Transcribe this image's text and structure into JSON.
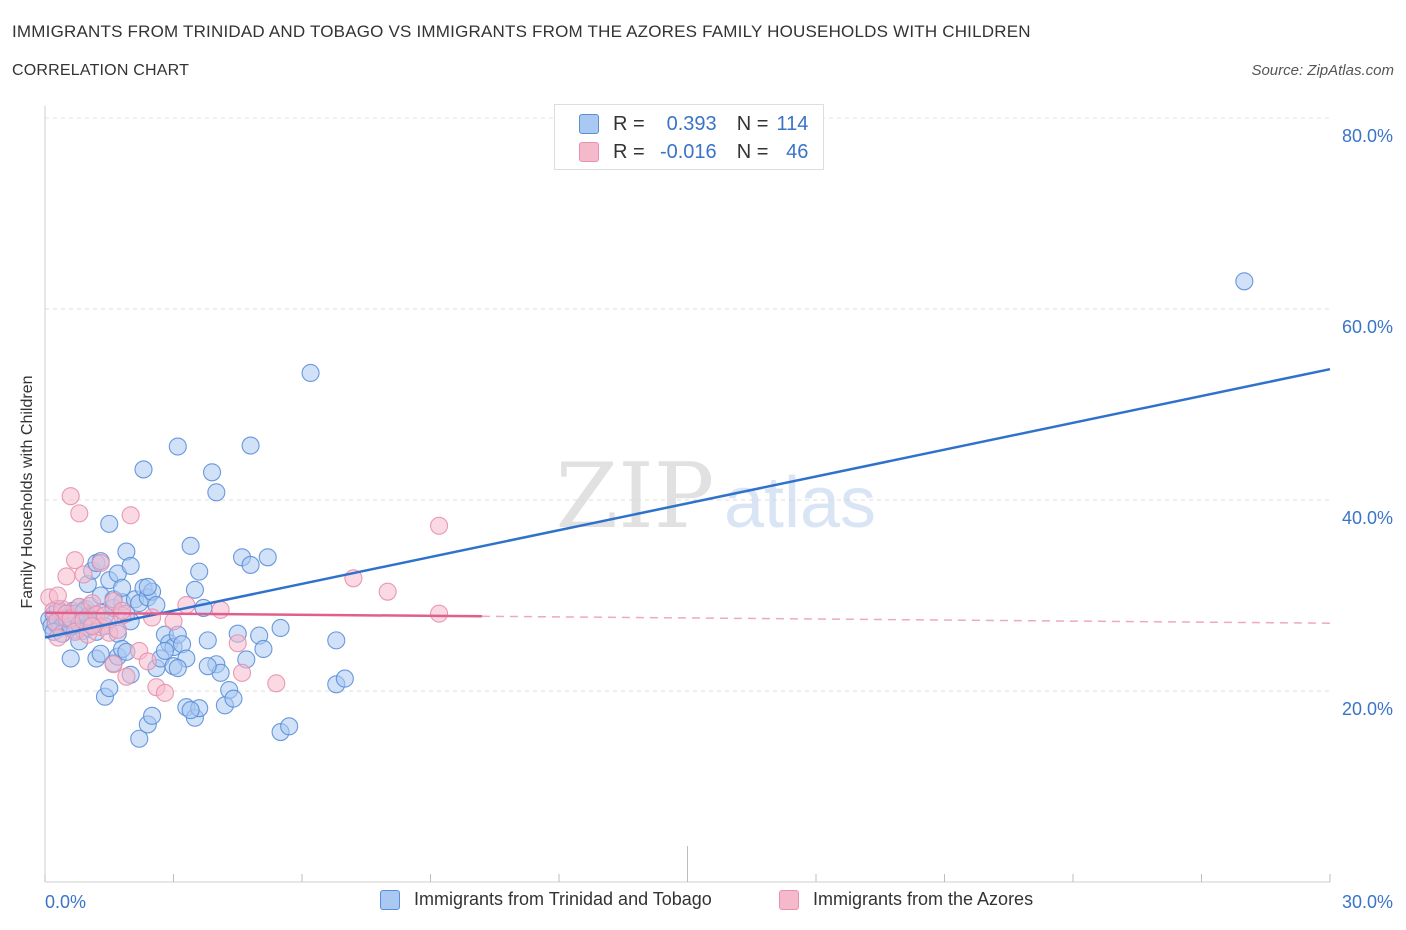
{
  "header": {
    "title": "IMMIGRANTS FROM TRINIDAD AND TOBAGO VS IMMIGRANTS FROM THE AZORES FAMILY HOUSEHOLDS WITH CHILDREN",
    "subtitle": "CORRELATION CHART",
    "source": "Source: ZipAtlas.com"
  },
  "watermark": {
    "zip": "ZIP",
    "atlas": "atlas"
  },
  "legend": {
    "rows": [
      {
        "r_label": "R = ",
        "r_value": "0.393",
        "n_label": "N = ",
        "n_value": "114",
        "color": "#a9c9f2"
      },
      {
        "r_label": "R = ",
        "r_value": "-0.016",
        "n_label": "N = ",
        "n_value": "46",
        "color": "#f5b9cc"
      }
    ]
  },
  "colors": {
    "blue": "#5a8fd8",
    "blue_fill": "#a9c9f2",
    "blue_line": "#2f72cc",
    "pink": "#e68fae",
    "pink_fill": "#f5b9cc",
    "pink_line": "#e0608d",
    "tick_text": "#3a74c8"
  },
  "chart_data": {
    "type": "scatter",
    "title": "IMMIGRANTS FROM TRINIDAD AND TOBAGO VS IMMIGRANTS FROM THE AZORES FAMILY HOUSEHOLDS WITH CHILDREN",
    "xlabel": "",
    "ylabel": "Family Households with Children",
    "xlim": [
      0,
      30
    ],
    "ylim": [
      0,
      80
    ],
    "x_tick_labels": [
      "0.0%",
      "30.0%"
    ],
    "y_ticks": [
      20,
      40,
      60,
      80
    ],
    "y_tick_labels": [
      "20.0%",
      "40.0%",
      "60.0%",
      "80.0%"
    ],
    "grid": true,
    "legend_position": "top-center",
    "series": [
      {
        "name": "Immigrants from Trinidad and Tobago",
        "color": "#5a8fd8",
        "R": 0.393,
        "N": 114,
        "trend": {
          "x": [
            0,
            30
          ],
          "y": [
            25.6,
            53.7
          ],
          "dashed_from": null
        },
        "points": [
          [
            0.1,
            27.5
          ],
          [
            0.15,
            26.8
          ],
          [
            0.2,
            28.0
          ],
          [
            0.25,
            27.0
          ],
          [
            0.3,
            27.4
          ],
          [
            0.35,
            26.6
          ],
          [
            0.4,
            28.2
          ],
          [
            0.45,
            27.1
          ],
          [
            0.5,
            26.9
          ],
          [
            0.55,
            27.8
          ],
          [
            0.6,
            27.3
          ],
          [
            0.65,
            28.4
          ],
          [
            0.7,
            26.4
          ],
          [
            0.75,
            27.9
          ],
          [
            0.8,
            28.8
          ],
          [
            0.85,
            27.2
          ],
          [
            0.9,
            26.3
          ],
          [
            0.95,
            28.6
          ],
          [
            1.0,
            27.6
          ],
          [
            1.05,
            28.9
          ],
          [
            0.2,
            26.2
          ],
          [
            0.3,
            28.6
          ],
          [
            0.4,
            26.0
          ],
          [
            0.5,
            27.6
          ],
          [
            0.6,
            26.8
          ],
          [
            0.7,
            28.1
          ],
          [
            0.8,
            27.0
          ],
          [
            0.9,
            28.3
          ],
          [
            1.0,
            26.6
          ],
          [
            1.1,
            27.4
          ],
          [
            1.1,
            27.0
          ],
          [
            1.2,
            26.2
          ],
          [
            1.3,
            28.2
          ],
          [
            1.4,
            26.8
          ],
          [
            1.5,
            27.5
          ],
          [
            1.6,
            28.7
          ],
          [
            1.7,
            26.0
          ],
          [
            1.8,
            29.3
          ],
          [
            1.9,
            28.1
          ],
          [
            2.0,
            27.3
          ],
          [
            1.0,
            31.2
          ],
          [
            1.1,
            32.6
          ],
          [
            1.2,
            33.4
          ],
          [
            1.3,
            30.0
          ],
          [
            1.5,
            31.6
          ],
          [
            1.6,
            29.6
          ],
          [
            1.7,
            32.3
          ],
          [
            1.8,
            30.8
          ],
          [
            1.9,
            34.6
          ],
          [
            2.0,
            33.1
          ],
          [
            2.1,
            29.6
          ],
          [
            2.2,
            29.2
          ],
          [
            2.3,
            30.8
          ],
          [
            2.4,
            29.8
          ],
          [
            2.5,
            30.4
          ],
          [
            2.6,
            29.0
          ],
          [
            2.8,
            25.9
          ],
          [
            2.9,
            25.0
          ],
          [
            3.0,
            24.6
          ],
          [
            3.1,
            25.9
          ],
          [
            3.2,
            24.9
          ],
          [
            3.3,
            23.4
          ],
          [
            3.4,
            35.2
          ],
          [
            3.5,
            30.6
          ],
          [
            3.6,
            32.5
          ],
          [
            3.7,
            28.7
          ],
          [
            3.8,
            25.3
          ],
          [
            4.0,
            22.8
          ],
          [
            4.1,
            21.9
          ],
          [
            4.2,
            18.5
          ],
          [
            4.3,
            20.1
          ],
          [
            4.4,
            19.2
          ],
          [
            4.5,
            26.0
          ],
          [
            4.6,
            34.0
          ],
          [
            4.7,
            23.3
          ],
          [
            4.8,
            33.2
          ],
          [
            5.0,
            25.8
          ],
          [
            5.1,
            24.4
          ],
          [
            5.2,
            34.0
          ],
          [
            5.5,
            26.6
          ],
          [
            1.2,
            23.4
          ],
          [
            1.3,
            23.9
          ],
          [
            1.4,
            19.4
          ],
          [
            1.5,
            20.3
          ],
          [
            1.6,
            22.9
          ],
          [
            1.7,
            23.6
          ],
          [
            1.8,
            24.4
          ],
          [
            1.9,
            24.1
          ],
          [
            2.0,
            21.7
          ],
          [
            2.2,
            15.0
          ],
          [
            2.4,
            16.5
          ],
          [
            2.5,
            17.4
          ],
          [
            2.6,
            22.4
          ],
          [
            2.7,
            23.4
          ],
          [
            2.8,
            24.2
          ],
          [
            3.0,
            22.6
          ],
          [
            3.1,
            22.4
          ],
          [
            3.3,
            18.3
          ],
          [
            3.5,
            17.2
          ],
          [
            3.6,
            18.2
          ],
          [
            2.3,
            43.2
          ],
          [
            3.1,
            45.6
          ],
          [
            3.9,
            42.9
          ],
          [
            4.0,
            40.8
          ],
          [
            4.8,
            45.7
          ],
          [
            1.5,
            37.5
          ],
          [
            5.5,
            15.7
          ],
          [
            5.7,
            16.3
          ],
          [
            6.2,
            53.3
          ],
          [
            6.8,
            25.3
          ],
          [
            6.8,
            20.7
          ],
          [
            7.0,
            21.3
          ],
          [
            3.4,
            18.0
          ],
          [
            3.8,
            22.6
          ],
          [
            28.0,
            62.9
          ],
          [
            0.8,
            25.2
          ],
          [
            1.3,
            33.6
          ],
          [
            2.4,
            30.9
          ],
          [
            0.6,
            23.4
          ],
          [
            1.0,
            27.8
          ]
        ]
      },
      {
        "name": "Immigrants from the Azores",
        "color": "#e68fae",
        "R": -0.016,
        "N": 46,
        "trend": {
          "x": [
            0,
            30
          ],
          "y": [
            28.2,
            27.1
          ],
          "dashed_from": 10.2
        },
        "points": [
          [
            0.1,
            29.8
          ],
          [
            0.2,
            28.4
          ],
          [
            0.25,
            27.2
          ],
          [
            0.3,
            25.6
          ],
          [
            0.4,
            28.6
          ],
          [
            0.5,
            28.1
          ],
          [
            0.6,
            27.6
          ],
          [
            0.7,
            26.2
          ],
          [
            0.8,
            28.8
          ],
          [
            0.9,
            27.4
          ],
          [
            1.0,
            25.9
          ],
          [
            1.1,
            29.2
          ],
          [
            1.2,
            28.0
          ],
          [
            1.3,
            26.7
          ],
          [
            1.4,
            27.9
          ],
          [
            1.5,
            26.1
          ],
          [
            1.6,
            29.4
          ],
          [
            1.7,
            26.4
          ],
          [
            1.8,
            27.9
          ],
          [
            1.9,
            21.5
          ],
          [
            0.5,
            32.0
          ],
          [
            0.6,
            40.4
          ],
          [
            0.7,
            33.7
          ],
          [
            0.8,
            38.6
          ],
          [
            0.9,
            32.2
          ],
          [
            1.3,
            33.4
          ],
          [
            2.0,
            38.4
          ],
          [
            1.8,
            28.4
          ],
          [
            2.2,
            24.2
          ],
          [
            2.4,
            23.1
          ],
          [
            2.6,
            20.4
          ],
          [
            2.8,
            19.8
          ],
          [
            3.0,
            27.3
          ],
          [
            3.3,
            29.0
          ],
          [
            4.1,
            28.5
          ],
          [
            4.5,
            25.0
          ],
          [
            4.6,
            21.9
          ],
          [
            5.4,
            20.8
          ],
          [
            7.2,
            31.8
          ],
          [
            8.0,
            30.4
          ],
          [
            9.2,
            37.3
          ],
          [
            9.2,
            28.1
          ],
          [
            1.6,
            22.8
          ],
          [
            2.5,
            27.7
          ],
          [
            0.3,
            30.0
          ],
          [
            1.1,
            26.8
          ]
        ]
      }
    ]
  },
  "bottom_legend": {
    "items": [
      {
        "label": "Immigrants from Trinidad and Tobago",
        "color": "#a9c9f2"
      },
      {
        "label": "Immigrants from the Azores",
        "color": "#f5b9cc"
      }
    ]
  }
}
